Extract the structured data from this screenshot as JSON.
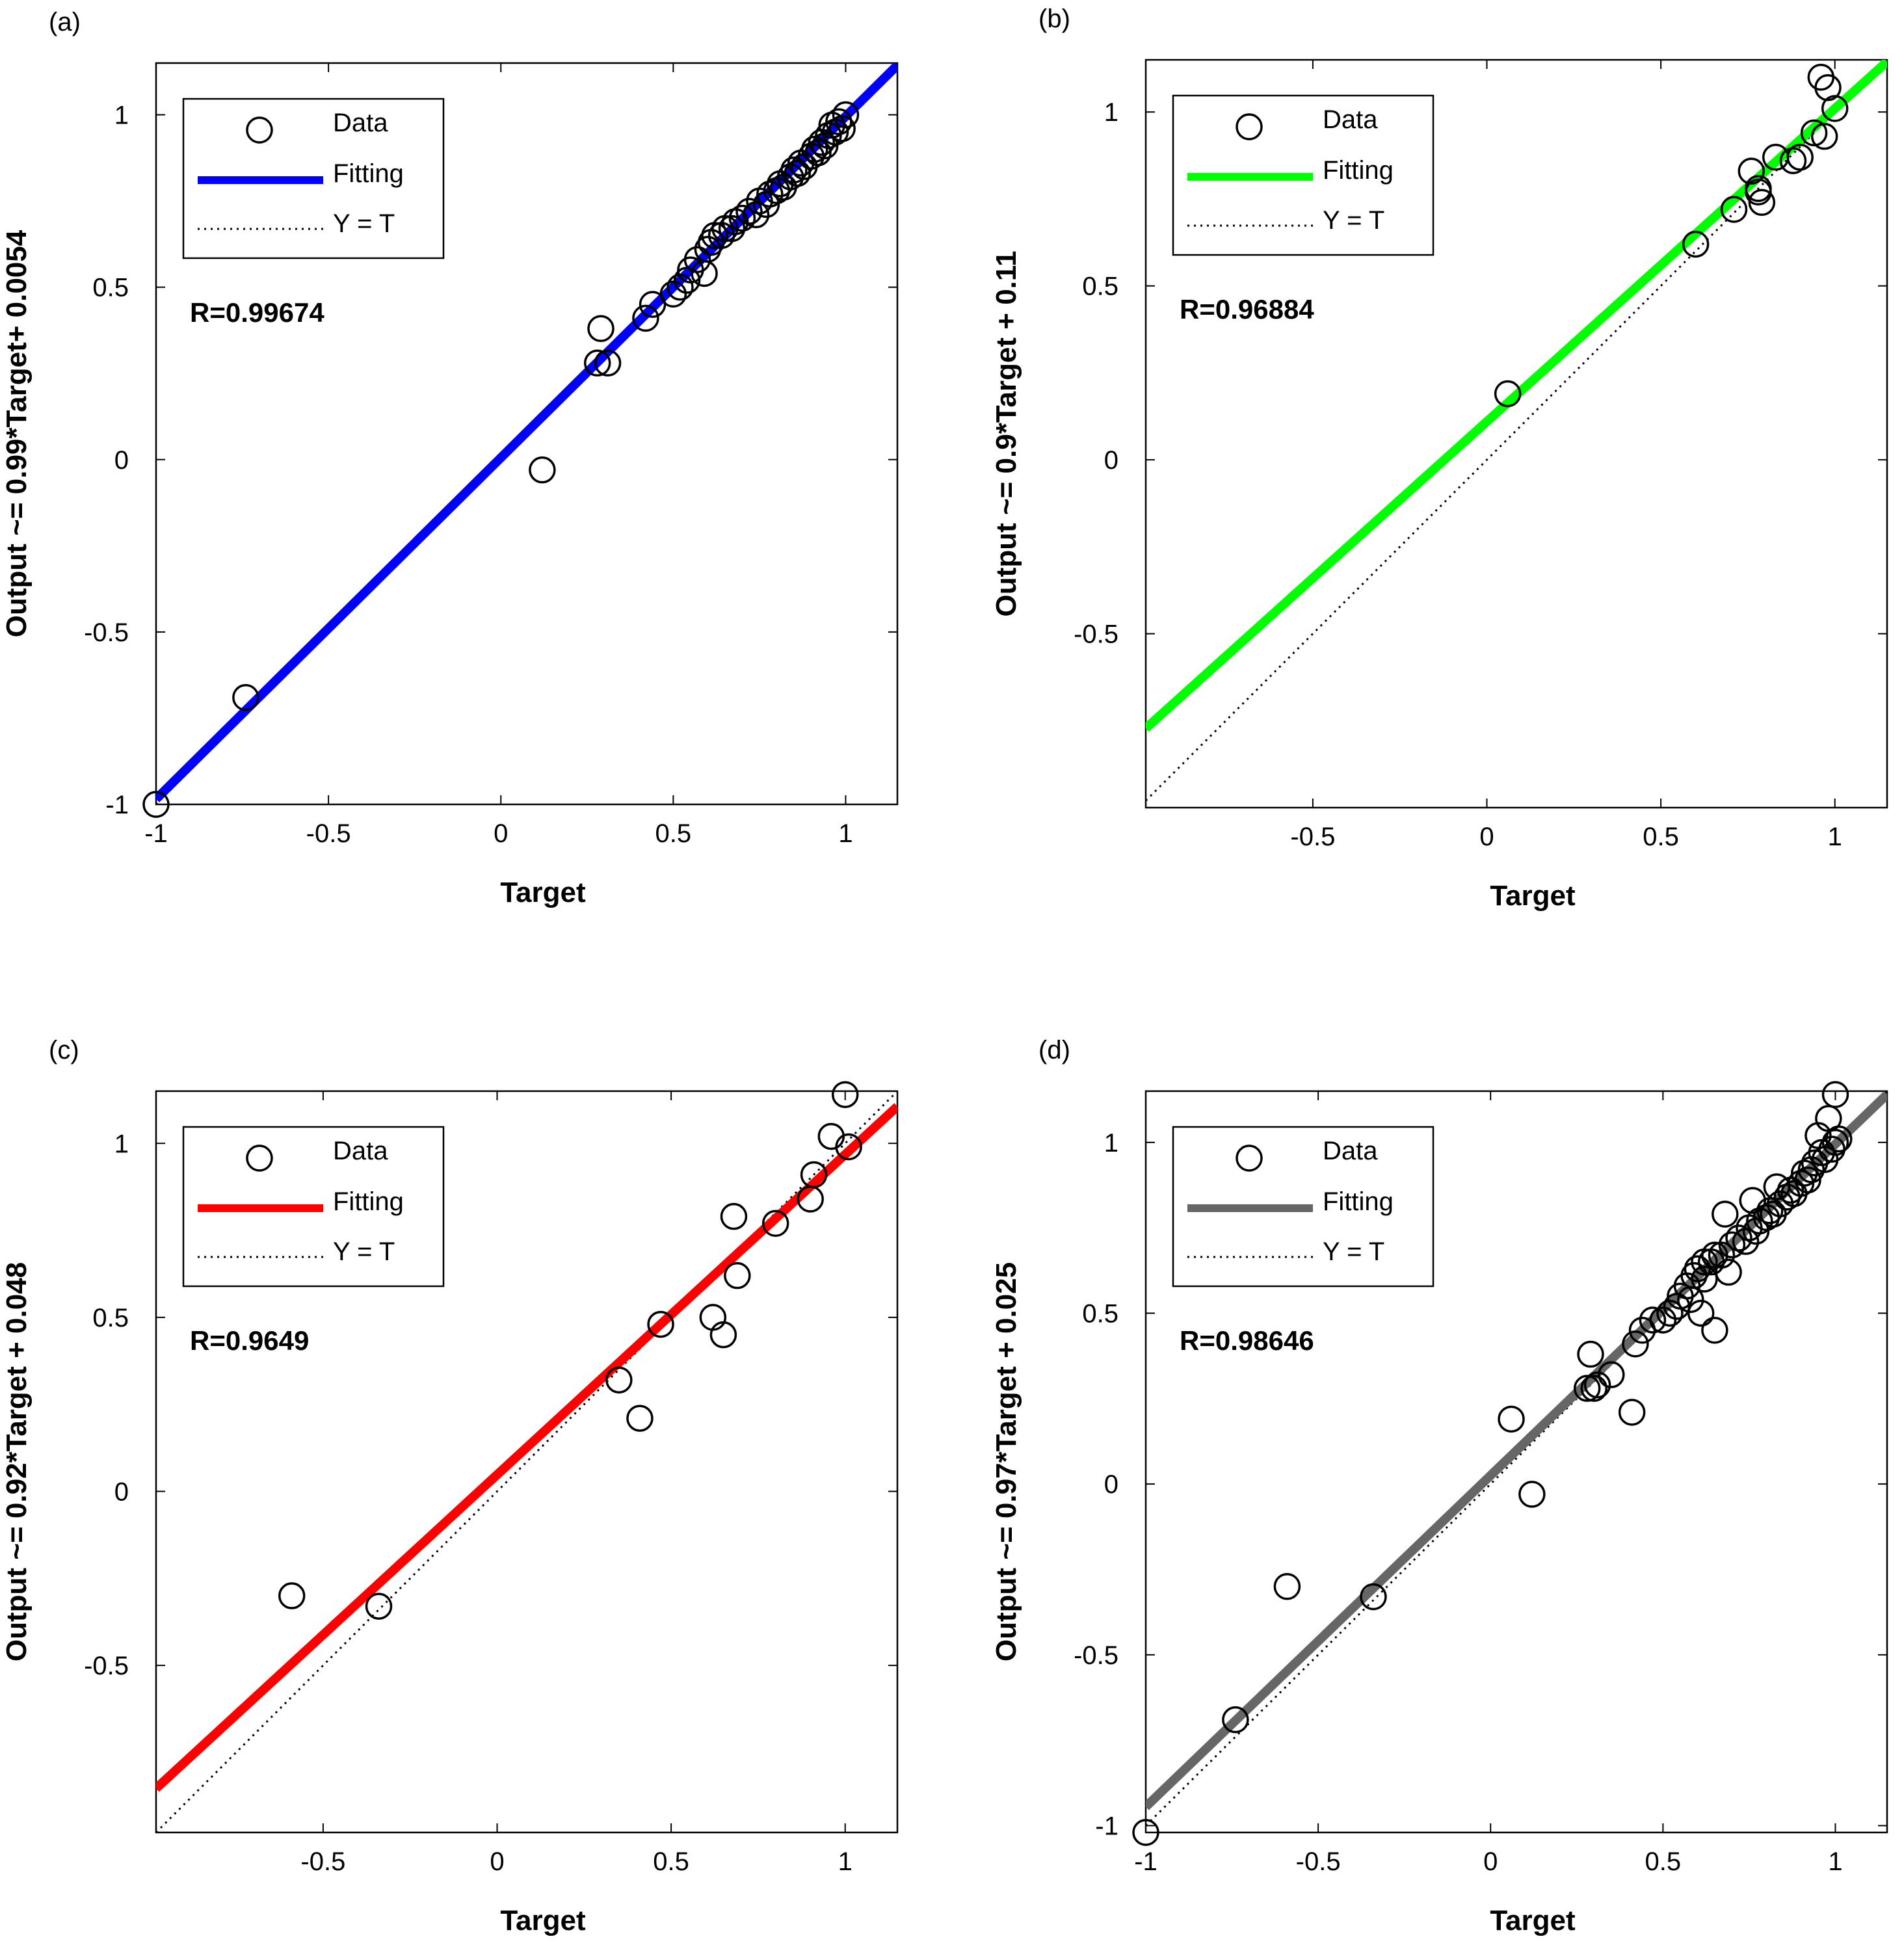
{
  "figure": {
    "panels_count": 4
  },
  "legend": {
    "data_label": "Data",
    "fitting_label": "Fitting",
    "yt_label": "Y = T"
  },
  "colors": {
    "axis": "#000000",
    "marker": "#000000",
    "identity": "#000000"
  },
  "chart_data": [
    {
      "type": "scatter",
      "panel_letter": "(a)",
      "title": "",
      "xlabel": "Target",
      "ylabel": "Output ~= 0.99*Target+ 0.0054",
      "r_text": "R=0.99674",
      "xlim": [
        -1,
        1.15
      ],
      "ylim": [
        -1,
        1.15
      ],
      "xticks": [
        -1,
        -0.5,
        0,
        0.5,
        1
      ],
      "yticks": [
        -1,
        -0.5,
        0,
        0.5,
        1
      ],
      "xtick_labels": [
        "-1",
        "-0.5",
        "0",
        "0.5",
        "1"
      ],
      "ytick_labels": [
        "-1",
        "-0.5",
        "0",
        "0.5",
        "1"
      ],
      "fit": {
        "slope": 0.99,
        "intercept": 0.0054,
        "color": "#0000FF"
      },
      "legend_position": "top-left",
      "series": [
        {
          "name": "Data",
          "x": [
            -1,
            -0.74,
            0.12,
            0.28,
            0.29,
            0.31,
            0.42,
            0.44,
            0.5,
            0.52,
            0.54,
            0.55,
            0.57,
            0.59,
            0.6,
            0.61,
            0.62,
            0.64,
            0.65,
            0.67,
            0.68,
            0.7,
            0.72,
            0.74,
            0.75,
            0.77,
            0.78,
            0.8,
            0.81,
            0.82,
            0.84,
            0.85,
            0.86,
            0.87,
            0.88,
            0.9,
            0.91,
            0.92,
            0.93,
            0.94,
            0.95,
            0.96,
            0.97,
            0.98,
            0.99,
            1.0
          ],
          "y": [
            -1,
            -0.69,
            -0.03,
            0.28,
            0.38,
            0.28,
            0.41,
            0.45,
            0.48,
            0.5,
            0.52,
            0.55,
            0.58,
            0.54,
            0.61,
            0.63,
            0.65,
            0.65,
            0.67,
            0.67,
            0.69,
            0.7,
            0.72,
            0.71,
            0.75,
            0.74,
            0.77,
            0.78,
            0.8,
            0.79,
            0.82,
            0.84,
            0.83,
            0.86,
            0.85,
            0.88,
            0.9,
            0.89,
            0.92,
            0.91,
            0.94,
            0.97,
            0.95,
            0.98,
            0.96,
            1.0
          ]
        }
      ]
    },
    {
      "type": "scatter",
      "panel_letter": "(b)",
      "title": "",
      "xlabel": "Target",
      "ylabel": "Output ~= 0.9*Target + 0.11",
      "r_text": "R=0.96884",
      "xlim": [
        -0.98,
        1.15
      ],
      "ylim": [
        -1,
        1.15
      ],
      "xticks": [
        -0.5,
        0,
        0.5,
        1
      ],
      "yticks": [
        -0.5,
        0,
        0.5,
        1
      ],
      "xtick_labels": [
        "-0.5",
        "0",
        "0.5",
        "1"
      ],
      "ytick_labels": [
        "-0.5",
        "0",
        "0.5",
        "1"
      ],
      "fit": {
        "slope": 0.9,
        "intercept": 0.11,
        "color": "#00FF00"
      },
      "legend_position": "top-left",
      "series": [
        {
          "name": "Data",
          "x": [
            0.06,
            0.6,
            0.71,
            0.76,
            0.78,
            0.79,
            0.78,
            0.83,
            0.88,
            0.9,
            0.94,
            0.97,
            0.98,
            1.0,
            0.96
          ],
          "y": [
            0.19,
            0.62,
            0.72,
            0.83,
            0.78,
            0.74,
            0.77,
            0.87,
            0.86,
            0.87,
            0.94,
            0.93,
            1.07,
            1.01,
            1.1
          ]
        }
      ]
    },
    {
      "type": "scatter",
      "panel_letter": "(c)",
      "title": "",
      "xlabel": "Target",
      "ylabel": "Output ~= 0.92*Target + 0.048",
      "r_text": "R=0.9649",
      "xlim": [
        -0.98,
        1.15
      ],
      "ylim": [
        -0.98,
        1.15
      ],
      "xticks": [
        -0.5,
        0,
        0.5,
        1
      ],
      "yticks": [
        -0.5,
        0,
        0.5,
        1
      ],
      "xtick_labels": [
        "-0.5",
        "0",
        "0.5",
        "1"
      ],
      "ytick_labels": [
        "-0.5",
        "0",
        "0.5",
        "1"
      ],
      "fit": {
        "slope": 0.92,
        "intercept": 0.048,
        "color": "#FF0000"
      },
      "legend_position": "top-left",
      "series": [
        {
          "name": "Data",
          "x": [
            -0.59,
            -0.34,
            0.35,
            0.41,
            0.47,
            0.62,
            0.65,
            0.68,
            0.69,
            0.8,
            0.9,
            0.91,
            0.96,
            1.0,
            1.01
          ],
          "y": [
            -0.3,
            -0.33,
            0.32,
            0.21,
            0.48,
            0.5,
            0.45,
            0.79,
            0.62,
            0.77,
            0.84,
            0.91,
            1.02,
            1.14,
            0.99
          ]
        }
      ]
    },
    {
      "type": "scatter",
      "panel_letter": "(d)",
      "title": "",
      "xlabel": "Target",
      "ylabel": "Output ~= 0.97*Target + 0.025",
      "r_text": "R=0.98646",
      "xlim": [
        -1,
        1.15
      ],
      "ylim": [
        -1.02,
        1.15
      ],
      "xticks": [
        -1,
        -0.5,
        0,
        0.5,
        1
      ],
      "yticks": [
        -1,
        -0.5,
        0,
        0.5,
        1
      ],
      "xtick_labels": [
        "-1",
        "-0.5",
        "0",
        "0.5",
        "1"
      ],
      "ytick_labels": [
        "-1",
        "-0.5",
        "0",
        "0.5",
        "1"
      ],
      "fit": {
        "slope": 0.97,
        "intercept": 0.025,
        "color": "#666666"
      },
      "legend_position": "top-left",
      "series": [
        {
          "name": "Data",
          "x": [
            -1,
            -0.74,
            -0.59,
            -0.34,
            0.06,
            0.12,
            0.28,
            0.29,
            0.3,
            0.31,
            0.35,
            0.41,
            0.42,
            0.44,
            0.47,
            0.5,
            0.52,
            0.54,
            0.55,
            0.57,
            0.58,
            0.59,
            0.6,
            0.61,
            0.62,
            0.62,
            0.64,
            0.65,
            0.65,
            0.67,
            0.68,
            0.69,
            0.7,
            0.72,
            0.74,
            0.75,
            0.76,
            0.77,
            0.78,
            0.8,
            0.81,
            0.82,
            0.83,
            0.84,
            0.86,
            0.87,
            0.88,
            0.9,
            0.91,
            0.92,
            0.93,
            0.94,
            0.95,
            0.96,
            0.97,
            0.98,
            0.99,
            1.0,
            1.0,
            1.01
          ],
          "y": [
            -1.02,
            -0.69,
            -0.3,
            -0.33,
            0.19,
            -0.03,
            0.28,
            0.38,
            0.28,
            0.29,
            0.32,
            0.21,
            0.41,
            0.45,
            0.48,
            0.48,
            0.5,
            0.52,
            0.55,
            0.58,
            0.54,
            0.61,
            0.63,
            0.5,
            0.65,
            0.6,
            0.65,
            0.67,
            0.45,
            0.67,
            0.79,
            0.62,
            0.7,
            0.72,
            0.71,
            0.75,
            0.83,
            0.74,
            0.77,
            0.78,
            0.8,
            0.79,
            0.87,
            0.82,
            0.84,
            0.86,
            0.85,
            0.88,
            0.91,
            0.89,
            0.92,
            0.94,
            1.02,
            0.97,
            0.95,
            1.07,
            0.98,
            1.0,
            1.14,
            1.01
          ]
        }
      ]
    }
  ]
}
